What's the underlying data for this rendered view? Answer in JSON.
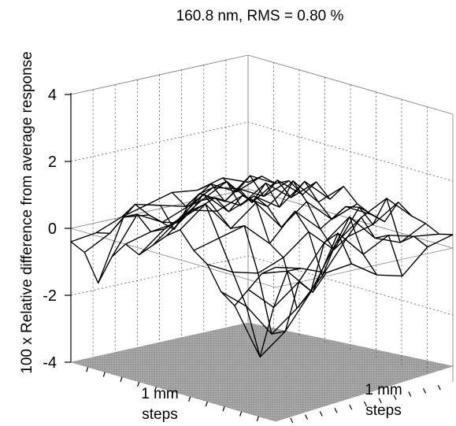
{
  "chart_data": {
    "type": "surface",
    "title": "160.8 nm,  RMS = 0.80 %",
    "zlabel": "100 x Relative difference from average response",
    "xlabel": "1 mm steps",
    "ylabel": "1 mm steps",
    "xlabel_lines": [
      "1 mm",
      "steps"
    ],
    "ylabel_lines": [
      "1 mm",
      "steps"
    ],
    "zlim": [
      -4,
      4
    ],
    "zticks": [
      {
        "value": 4,
        "label": "4"
      },
      {
        "value": 2,
        "label": "2"
      },
      {
        "value": 0,
        "label": "0"
      },
      {
        "value": -2,
        "label": "-2"
      },
      {
        "value": -4,
        "label": "-4"
      }
    ],
    "grid": true,
    "surface": [
      [
        -0.4,
        -0.6,
        -1.4,
        -0.5,
        0.0,
        -0.2,
        0.2,
        0.6,
        0.9,
        0.4,
        0.1,
        -0.6,
        -0.9,
        -0.3,
        0.3,
        0.6
      ],
      [
        -0.3,
        -0.2,
        0.4,
        0.6,
        0.2,
        0.4,
        0.8,
        1.2,
        1.5,
        0.6,
        -0.3,
        -1.2,
        -2.6,
        -1.0,
        0.2,
        0.4
      ],
      [
        0.0,
        0.5,
        0.3,
        0.2,
        0.3,
        0.7,
        1.4,
        1.0,
        0.6,
        0.8,
        -0.5,
        -2.2,
        -2.0,
        -0.4,
        -0.6,
        0.1
      ],
      [
        0.2,
        0.3,
        -0.3,
        0.5,
        0.8,
        1.0,
        0.7,
        1.3,
        1.2,
        0.1,
        -0.2,
        -1.6,
        -1.0,
        0.6,
        1.0,
        0.2
      ],
      [
        0.4,
        0.1,
        0.6,
        0.9,
        1.2,
        0.6,
        1.0,
        0.8,
        0.3,
        0.9,
        0.4,
        -0.8,
        0.3,
        1.2,
        0.2,
        -0.3
      ],
      [
        0.3,
        0.6,
        0.2,
        0.7,
        0.4,
        1.1,
        0.5,
        1.4,
        0.9,
        0.2,
        -0.3,
        0.2,
        0.9,
        0.4,
        0.6,
        -0.5
      ],
      [
        0.5,
        0.2,
        0.8,
        0.3,
        0.9,
        0.5,
        1.1,
        0.6,
        0.2,
        0.7,
        0.8,
        0.4,
        1.3,
        0.1,
        0.4,
        0.2
      ],
      [
        0.2,
        0.5,
        0.4,
        0.6,
        0.3,
        0.8,
        0.4,
        0.9,
        0.5,
        0.3,
        0.2,
        0.9,
        0.6,
        0.5,
        0.3,
        0.4
      ]
    ]
  }
}
